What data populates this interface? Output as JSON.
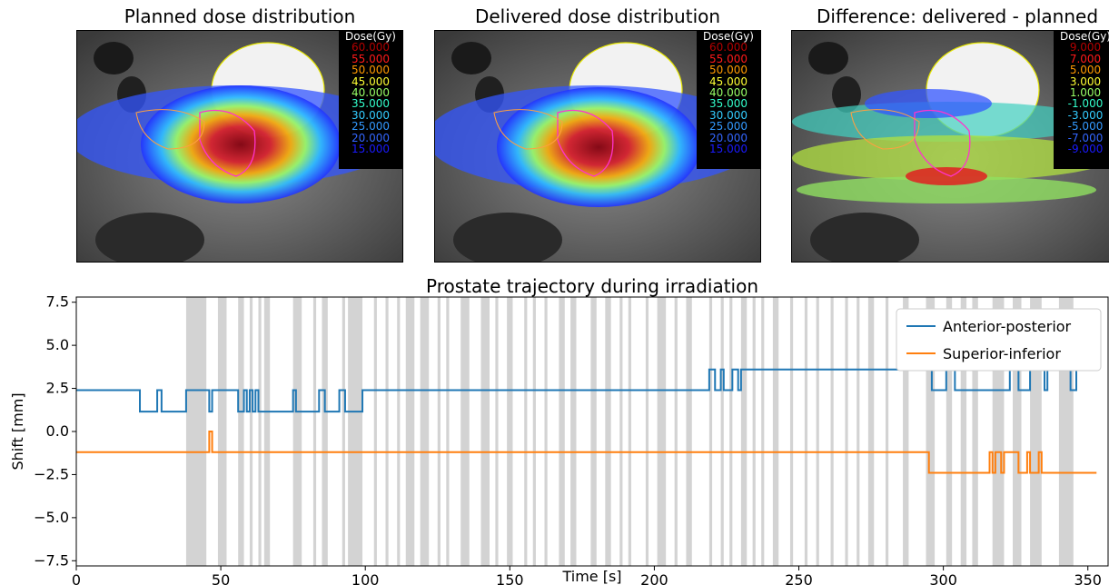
{
  "panels": [
    {
      "title": "Planned dose distribution",
      "legend_header": "Dose(Gy)",
      "legend": [
        {
          "label": "60.000",
          "color": "#b40000"
        },
        {
          "label": "55.000",
          "color": "#ff1a1a"
        },
        {
          "label": "50.000",
          "color": "#ff9900"
        },
        {
          "label": "45.000",
          "color": "#ffff33"
        },
        {
          "label": "40.000",
          "color": "#99ff66"
        },
        {
          "label": "35.000",
          "color": "#33ffcc"
        },
        {
          "label": "30.000",
          "color": "#33ccff"
        },
        {
          "label": "25.000",
          "color": "#3399ff"
        },
        {
          "label": "20.000",
          "color": "#3366ff"
        },
        {
          "label": "15.000",
          "color": "#1a1aff"
        }
      ]
    },
    {
      "title": "Delivered dose distribution",
      "legend_header": "Dose(Gy)",
      "legend": [
        {
          "label": "60.000",
          "color": "#b40000"
        },
        {
          "label": "55.000",
          "color": "#ff1a1a"
        },
        {
          "label": "50.000",
          "color": "#ff9900"
        },
        {
          "label": "45.000",
          "color": "#ffff33"
        },
        {
          "label": "40.000",
          "color": "#99ff66"
        },
        {
          "label": "35.000",
          "color": "#33ffcc"
        },
        {
          "label": "30.000",
          "color": "#33ccff"
        },
        {
          "label": "25.000",
          "color": "#3399ff"
        },
        {
          "label": "20.000",
          "color": "#3366ff"
        },
        {
          "label": "15.000",
          "color": "#1a1aff"
        }
      ]
    },
    {
      "title": "Difference: delivered - planned",
      "legend_header": "Dose(Gy)",
      "legend": [
        {
          "label": "9.000",
          "color": "#b40000"
        },
        {
          "label": "7.000",
          "color": "#ff1a1a"
        },
        {
          "label": "5.000",
          "color": "#ff9900"
        },
        {
          "label": "3.000",
          "color": "#ffff33"
        },
        {
          "label": "1.000",
          "color": "#99ff66"
        },
        {
          "label": "-1.000",
          "color": "#33ffcc"
        },
        {
          "label": "-3.000",
          "color": "#33ccff"
        },
        {
          "label": "-5.000",
          "color": "#3399ff"
        },
        {
          "label": "-7.000",
          "color": "#3366ff"
        },
        {
          "label": "-9.000",
          "color": "#1a1aff"
        }
      ]
    }
  ],
  "chart_data": {
    "type": "line",
    "title": "Prostate trajectory during irradiation",
    "xlabel": "Time [s]",
    "ylabel": "Shift [mm]",
    "xlim": [
      0,
      357
    ],
    "ylim": [
      -7.8,
      7.8
    ],
    "xticks": [
      0,
      50,
      100,
      150,
      200,
      250,
      300,
      350
    ],
    "yticks": [
      -7.5,
      -5.0,
      -2.5,
      0.0,
      2.5,
      5.0,
      7.5
    ],
    "xtick_labels": [
      "0",
      "50",
      "100",
      "150",
      "200",
      "250",
      "300",
      "350"
    ],
    "ytick_labels": [
      "−7.5",
      "−5.0",
      "−2.5",
      "0.0",
      "2.5",
      "5.0",
      "7.5"
    ],
    "legend_position": "top-right",
    "grid": false,
    "series": [
      {
        "name": "Anterior-posterior",
        "color": "#1f77b4",
        "points": [
          [
            0,
            2.4
          ],
          [
            22,
            2.4
          ],
          [
            22,
            1.15
          ],
          [
            28,
            1.15
          ],
          [
            28,
            2.4
          ],
          [
            29.5,
            2.4
          ],
          [
            29.5,
            1.15
          ],
          [
            38,
            1.15
          ],
          [
            38,
            2.4
          ],
          [
            46,
            2.4
          ],
          [
            46,
            1.15
          ],
          [
            47,
            1.15
          ],
          [
            47,
            2.4
          ],
          [
            56,
            2.4
          ],
          [
            56,
            1.15
          ],
          [
            58,
            1.15
          ],
          [
            58,
            2.4
          ],
          [
            59,
            2.4
          ],
          [
            59,
            1.15
          ],
          [
            60,
            1.15
          ],
          [
            60,
            2.4
          ],
          [
            61,
            2.4
          ],
          [
            61,
            1.15
          ],
          [
            62,
            1.15
          ],
          [
            62,
            2.4
          ],
          [
            63,
            2.4
          ],
          [
            63,
            1.15
          ],
          [
            75,
            1.15
          ],
          [
            75,
            2.4
          ],
          [
            76,
            2.4
          ],
          [
            76,
            1.15
          ],
          [
            84,
            1.15
          ],
          [
            84,
            2.4
          ],
          [
            86,
            2.4
          ],
          [
            86,
            1.15
          ],
          [
            91,
            1.15
          ],
          [
            91,
            2.4
          ],
          [
            93,
            2.4
          ],
          [
            93,
            1.15
          ],
          [
            99,
            1.15
          ],
          [
            99,
            2.4
          ],
          [
            219,
            2.4
          ],
          [
            219,
            3.6
          ],
          [
            221,
            3.6
          ],
          [
            221,
            2.4
          ],
          [
            223,
            2.4
          ],
          [
            223,
            3.6
          ],
          [
            224,
            3.6
          ],
          [
            224,
            2.4
          ],
          [
            227,
            2.4
          ],
          [
            227,
            3.6
          ],
          [
            229,
            3.6
          ],
          [
            229,
            2.4
          ],
          [
            230,
            2.4
          ],
          [
            230,
            3.6
          ],
          [
            296,
            3.6
          ],
          [
            296,
            2.4
          ],
          [
            301,
            2.4
          ],
          [
            301,
            3.6
          ],
          [
            304,
            3.6
          ],
          [
            304,
            2.4
          ],
          [
            323,
            2.4
          ],
          [
            323,
            3.6
          ],
          [
            326,
            3.6
          ],
          [
            326,
            2.4
          ],
          [
            330,
            2.4
          ],
          [
            330,
            3.6
          ],
          [
            335,
            3.6
          ],
          [
            335,
            2.4
          ],
          [
            336,
            2.4
          ],
          [
            336,
            3.6
          ],
          [
            344,
            3.6
          ],
          [
            344,
            2.4
          ],
          [
            346,
            2.4
          ],
          [
            346,
            3.6
          ],
          [
            353,
            3.6
          ]
        ]
      },
      {
        "name": "Superior-inferior",
        "color": "#ff7f0e",
        "points": [
          [
            0,
            -1.2
          ],
          [
            46,
            -1.2
          ],
          [
            46,
            0
          ],
          [
            47,
            0
          ],
          [
            47,
            -1.2
          ],
          [
            295,
            -1.2
          ],
          [
            295,
            -2.4
          ],
          [
            316,
            -2.4
          ],
          [
            316,
            -1.2
          ],
          [
            317,
            -1.2
          ],
          [
            317,
            -2.4
          ],
          [
            318,
            -2.4
          ],
          [
            318,
            -1.2
          ],
          [
            320,
            -1.2
          ],
          [
            320,
            -2.4
          ],
          [
            321,
            -2.4
          ],
          [
            321,
            -1.2
          ],
          [
            326,
            -1.2
          ],
          [
            326,
            -2.4
          ],
          [
            329,
            -2.4
          ],
          [
            329,
            -1.2
          ],
          [
            330,
            -1.2
          ],
          [
            330,
            -2.4
          ],
          [
            333,
            -2.4
          ],
          [
            333,
            -1.2
          ],
          [
            334,
            -1.2
          ],
          [
            334,
            -2.4
          ],
          [
            353,
            -2.4
          ]
        ]
      }
    ],
    "shaded_intervals": [
      [
        38,
        45
      ],
      [
        49,
        52
      ],
      [
        56,
        58
      ],
      [
        60,
        61
      ],
      [
        63,
        64
      ],
      [
        65,
        67
      ],
      [
        75,
        78
      ],
      [
        82,
        83
      ],
      [
        85,
        87
      ],
      [
        92,
        93
      ],
      [
        94,
        99
      ],
      [
        103,
        104
      ],
      [
        107,
        108
      ],
      [
        111,
        112
      ],
      [
        114,
        117
      ],
      [
        119,
        122
      ],
      [
        125,
        126
      ],
      [
        128,
        129
      ],
      [
        133,
        136
      ],
      [
        140,
        143
      ],
      [
        145,
        146
      ],
      [
        149,
        151
      ],
      [
        155,
        156
      ],
      [
        158,
        159
      ],
      [
        162,
        163
      ],
      [
        167,
        169
      ],
      [
        171,
        173
      ],
      [
        178,
        180
      ],
      [
        183,
        185
      ],
      [
        188,
        189
      ],
      [
        191,
        192
      ],
      [
        197,
        198
      ],
      [
        201,
        204
      ],
      [
        207,
        208
      ],
      [
        211,
        213
      ],
      [
        219,
        220
      ],
      [
        223,
        224
      ],
      [
        226,
        227
      ],
      [
        230,
        232
      ],
      [
        234,
        235
      ],
      [
        237,
        238
      ],
      [
        241,
        243
      ],
      [
        247,
        248
      ],
      [
        252,
        253
      ],
      [
        256,
        257
      ],
      [
        261,
        262
      ],
      [
        266,
        267
      ],
      [
        270,
        271
      ],
      [
        274,
        276
      ],
      [
        280,
        281
      ],
      [
        286,
        288
      ],
      [
        294,
        297
      ],
      [
        301,
        303
      ],
      [
        306,
        308
      ],
      [
        310,
        312
      ],
      [
        317,
        321
      ],
      [
        324,
        327
      ],
      [
        330,
        334
      ],
      [
        340,
        345
      ]
    ]
  }
}
